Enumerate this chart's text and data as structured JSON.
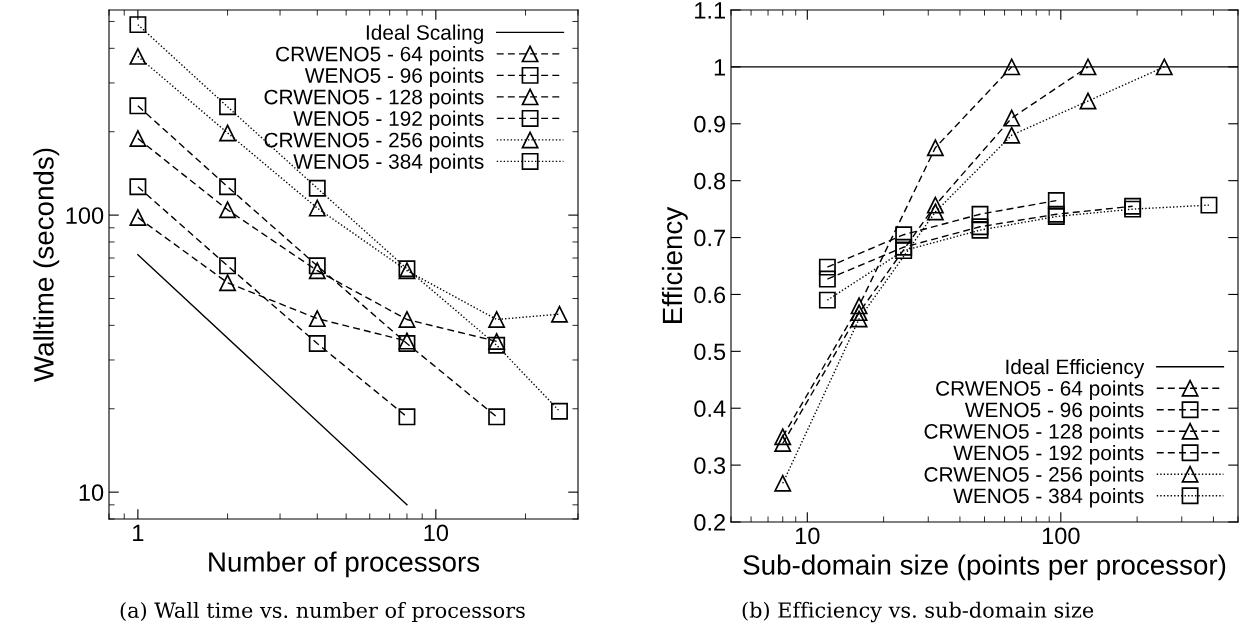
{
  "chart_data": [
    {
      "type": "line",
      "xlabel": "Number of processors",
      "ylabel": "Walltime (seconds)",
      "log": "xy",
      "xlim": [
        0.8,
        30
      ],
      "ylim": [
        8,
        550
      ],
      "xticks": [
        1,
        10
      ],
      "yticks": [
        10,
        100
      ],
      "grid": false,
      "legend": "top right",
      "annotations": [
        "(a) Wall time vs. number of processors"
      ],
      "series": [
        {
          "name": "Ideal Scaling",
          "color": "#000000",
          "x": [
            1,
            8
          ],
          "values": [
            72,
            9
          ],
          "line_style": "solid",
          "marker": "none"
        },
        {
          "name": "CRWENO5 - 64 points",
          "color": "#000000",
          "x": [
            1,
            2,
            4,
            8
          ],
          "values": [
            98,
            57,
            42.3,
            35.1
          ],
          "line_style": "dashed",
          "marker": "triangle"
        },
        {
          "name": "WENO5 - 96 points",
          "color": "#000000",
          "x": [
            1,
            2,
            4,
            8
          ],
          "values": [
            126.6,
            65.6,
            34.4,
            18.7
          ],
          "line_style": "dashed",
          "marker": "square"
        },
        {
          "name": "CRWENO5 - 128 points",
          "color": "#000000",
          "x": [
            1,
            2,
            4,
            8,
            16
          ],
          "values": [
            189,
            104.5,
            63,
            42,
            35
          ],
          "line_style": "dashed",
          "marker": "triangle"
        },
        {
          "name": "WENO5 - 192 points",
          "color": "#000000",
          "x": [
            1,
            2,
            4,
            8,
            16
          ],
          "values": [
            248,
            126.6,
            65.6,
            34.4,
            18.7
          ],
          "line_style": "dashed",
          "marker": "square"
        },
        {
          "name": "CRWENO5 - 256 points",
          "color": "#000000",
          "x": [
            1,
            2,
            4,
            8,
            16,
            26
          ],
          "values": [
            374,
            198,
            106,
            63,
            42,
            43.9
          ],
          "line_style": "dotted",
          "marker": "triangle"
        },
        {
          "name": "WENO5 - 384 points",
          "color": "#000000",
          "x": [
            1,
            2,
            4,
            8,
            16,
            26
          ],
          "values": [
            487,
            246,
            125,
            64,
            33.9,
            19.6
          ],
          "line_style": "dotted",
          "marker": "square"
        }
      ]
    },
    {
      "type": "line",
      "xlabel": "Sub-domain size (points per processor)",
      "ylabel": "Efficiency",
      "log": "x",
      "xlim": [
        5,
        500
      ],
      "ylim": [
        0.2,
        1.1
      ],
      "xticks": [
        10,
        100
      ],
      "yticks": [
        0.2,
        0.3,
        0.4,
        0.5,
        0.6,
        0.7,
        0.8,
        0.9,
        1,
        1.1
      ],
      "grid": false,
      "legend": "bottom right",
      "annotations": [
        "(b) Efficiency vs. sub-domain size"
      ],
      "series": [
        {
          "name": "Ideal Efficiency",
          "color": "#000000",
          "x": [
            5,
            500
          ],
          "values": [
            1,
            1
          ],
          "line_style": "solid",
          "marker": "none"
        },
        {
          "name": "CRWENO5 - 64 points",
          "color": "#000000",
          "x": [
            8,
            16,
            32,
            64
          ],
          "values": [
            0.35,
            0.58,
            0.858,
            1.0
          ],
          "line_style": "dashed",
          "marker": "triangle"
        },
        {
          "name": "WENO5 - 96 points",
          "color": "#000000",
          "x": [
            12,
            24,
            48,
            96
          ],
          "values": [
            0.648,
            0.705,
            0.741,
            0.765
          ],
          "line_style": "dashed",
          "marker": "square"
        },
        {
          "name": "CRWENO5 - 128 points",
          "color": "#000000",
          "x": [
            8,
            16,
            32,
            64,
            128
          ],
          "values": [
            0.338,
            0.568,
            0.757,
            0.91,
            1.0
          ],
          "line_style": "dashed",
          "marker": "triangle"
        },
        {
          "name": "WENO5 - 192 points",
          "color": "#000000",
          "x": [
            12,
            24,
            48,
            96,
            192
          ],
          "values": [
            0.627,
            0.683,
            0.719,
            0.741,
            0.755
          ],
          "line_style": "dashed",
          "marker": "square"
        },
        {
          "name": "CRWENO5 - 256 points",
          "color": "#000000",
          "x": [
            8,
            16,
            32,
            64,
            128,
            256
          ],
          "values": [
            0.268,
            0.557,
            0.745,
            0.88,
            0.94,
            1.0
          ],
          "line_style": "dotted",
          "marker": "triangle"
        },
        {
          "name": "WENO5 - 384 points",
          "color": "#000000",
          "x": [
            12,
            24,
            48,
            96,
            192,
            384
          ],
          "values": [
            0.59,
            0.677,
            0.713,
            0.737,
            0.75,
            0.757
          ],
          "line_style": "dotted",
          "marker": "square"
        }
      ]
    }
  ]
}
